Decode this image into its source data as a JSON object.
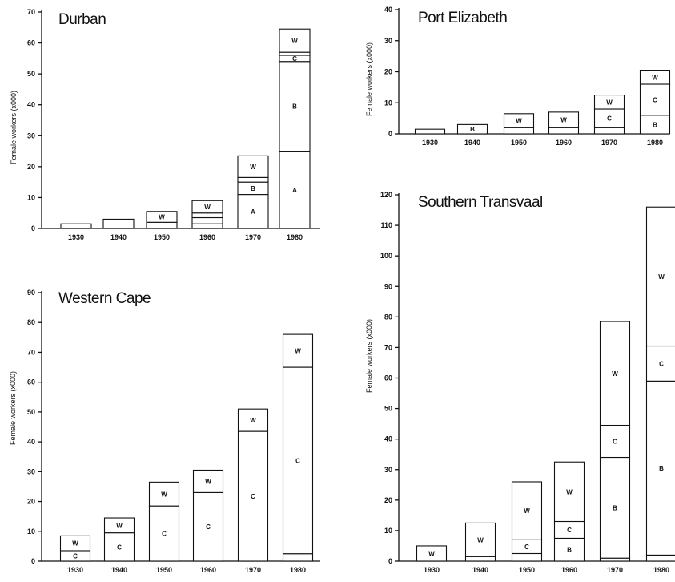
{
  "chart_data": [
    {
      "type": "bar",
      "stacked": true,
      "title": "Durban",
      "ylabel": "Female workers (x000)",
      "ylim": [
        0,
        70
      ],
      "yticks": [
        0,
        10,
        20,
        30,
        40,
        50,
        60,
        70
      ],
      "categories": [
        "1930",
        "1940",
        "1950",
        "1960",
        "1970",
        "1980"
      ],
      "segments": [
        [
          {
            "label": "",
            "value": 1.5
          }
        ],
        [
          {
            "label": "",
            "value": 3
          }
        ],
        [
          {
            "label": "",
            "value": 2
          },
          {
            "label": "W",
            "value": 3.5
          }
        ],
        [
          {
            "label": "",
            "value": 1.5
          },
          {
            "label": "",
            "value": 2
          },
          {
            "label": "",
            "value": 1.5
          },
          {
            "label": "W",
            "value": 4
          }
        ],
        [
          {
            "label": "A",
            "value": 11
          },
          {
            "label": "B",
            "value": 4
          },
          {
            "label": "",
            "value": 1.5
          },
          {
            "label": "W",
            "value": 7
          }
        ],
        [
          {
            "label": "A",
            "value": 25
          },
          {
            "label": "B",
            "value": 29
          },
          {
            "label": "C",
            "value": 2
          },
          {
            "label": "",
            "value": 1
          },
          {
            "label": "W",
            "value": 7.5
          }
        ]
      ]
    },
    {
      "type": "bar",
      "stacked": true,
      "title": "Port Elizabeth",
      "ylabel": "Female workers (x000)",
      "ylim": [
        0,
        40
      ],
      "yticks": [
        0,
        10,
        20,
        30,
        40
      ],
      "categories": [
        "1930",
        "1940",
        "1950",
        "1960",
        "1970",
        "1980"
      ],
      "segments": [
        [
          {
            "label": "",
            "value": 1.5
          }
        ],
        [
          {
            "label": "B",
            "value": 3
          }
        ],
        [
          {
            "label": "",
            "value": 2
          },
          {
            "label": "W",
            "value": 4.5
          }
        ],
        [
          {
            "label": "",
            "value": 2
          },
          {
            "label": "W",
            "value": 5
          }
        ],
        [
          {
            "label": "",
            "value": 2
          },
          {
            "label": "C",
            "value": 6
          },
          {
            "label": "W",
            "value": 4.5
          }
        ],
        [
          {
            "label": "B",
            "value": 6
          },
          {
            "label": "C",
            "value": 10
          },
          {
            "label": "W",
            "value": 4.5
          }
        ]
      ]
    },
    {
      "type": "bar",
      "stacked": true,
      "title": "Western Cape",
      "ylabel": "Female workers (x000)",
      "ylim": [
        0,
        90
      ],
      "yticks": [
        0,
        10,
        20,
        30,
        40,
        50,
        60,
        70,
        80,
        90
      ],
      "categories": [
        "1930",
        "1940",
        "1950",
        "1960",
        "1970",
        "1980"
      ],
      "segments": [
        [
          {
            "label": "C",
            "value": 3.5
          },
          {
            "label": "W",
            "value": 5
          }
        ],
        [
          {
            "label": "C",
            "value": 9.5
          },
          {
            "label": "W",
            "value": 5
          }
        ],
        [
          {
            "label": "C",
            "value": 18.5
          },
          {
            "label": "W",
            "value": 8
          }
        ],
        [
          {
            "label": "C",
            "value": 23
          },
          {
            "label": "W",
            "value": 7.5
          }
        ],
        [
          {
            "label": "C",
            "value": 43.5
          },
          {
            "label": "W",
            "value": 7.5
          }
        ],
        [
          {
            "label": "",
            "value": 2.5
          },
          {
            "label": "C",
            "value": 62.5
          },
          {
            "label": "W",
            "value": 11
          }
        ]
      ]
    },
    {
      "type": "bar",
      "stacked": true,
      "title": "Southern Transvaal",
      "ylabel": "Female workers (x000)",
      "ylim": [
        0,
        120
      ],
      "yticks": [
        0,
        10,
        20,
        30,
        40,
        50,
        60,
        70,
        80,
        90,
        100,
        110,
        120
      ],
      "categories": [
        "1930",
        "1940",
        "1950",
        "1960",
        "1970",
        "1980"
      ],
      "segments": [
        [
          {
            "label": "W",
            "value": 5
          }
        ],
        [
          {
            "label": "",
            "value": 1.5
          },
          {
            "label": "W",
            "value": 11
          }
        ],
        [
          {
            "label": "",
            "value": 2.5
          },
          {
            "label": "C",
            "value": 4.5
          },
          {
            "label": "W",
            "value": 19
          }
        ],
        [
          {
            "label": "B",
            "value": 7.5
          },
          {
            "label": "C",
            "value": 5.5
          },
          {
            "label": "W",
            "value": 19.5
          }
        ],
        [
          {
            "label": "",
            "value": 1
          },
          {
            "label": "B",
            "value": 33
          },
          {
            "label": "C",
            "value": 10.5
          },
          {
            "label": "W",
            "value": 34
          }
        ],
        [
          {
            "label": "",
            "value": 2
          },
          {
            "label": "B",
            "value": 57
          },
          {
            "label": "C",
            "value": 11.5
          },
          {
            "label": "W",
            "value": 45.5
          }
        ]
      ]
    }
  ]
}
